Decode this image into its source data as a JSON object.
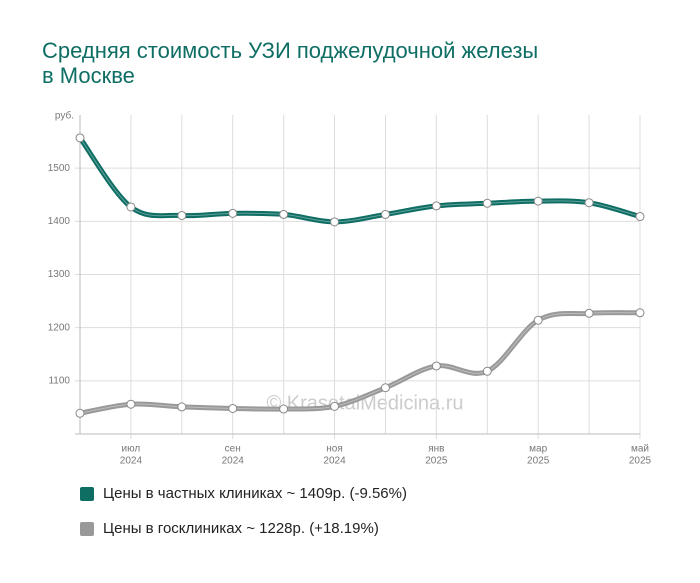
{
  "chart_data": {
    "type": "line",
    "title": [
      "Средняя стоимость УЗИ поджелудочной железы",
      "в Москве"
    ],
    "y_label": "руб.",
    "watermark": "© KrasotaiMedicina.ru",
    "categories": [
      null,
      [
        "июл",
        "2024"
      ],
      null,
      [
        "сен",
        "2024"
      ],
      null,
      [
        "ноя",
        "2024"
      ],
      null,
      [
        "янв",
        "2025"
      ],
      null,
      [
        "мар",
        "2025"
      ],
      null,
      [
        "май",
        "2025"
      ]
    ],
    "series": [
      {
        "name": "Цены в частных клиниках ~ 1409р. (-9.56%)",
        "color": "#0e6e64",
        "values": [
          1557,
          1427,
          1411,
          1415,
          1413,
          1399,
          1413,
          1429,
          1434,
          1438,
          1435,
          1409
        ]
      },
      {
        "name": "Цены в госклиниках ~ 1228р. (+18.19%)",
        "color": "#999999",
        "values": [
          1039,
          1056,
          1051,
          1048,
          1047,
          1052,
          1087,
          1128,
          1118,
          1214,
          1227,
          1228
        ]
      }
    ],
    "ylim": [
      1000,
      1600
    ],
    "yticks": [
      1100,
      1200,
      1300,
      1400,
      1500
    ],
    "grid": true
  }
}
